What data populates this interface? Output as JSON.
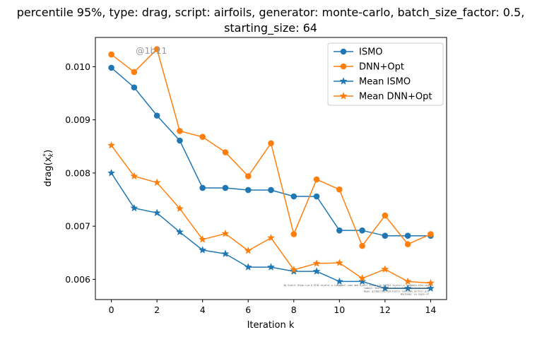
{
  "chart_data": {
    "type": "line",
    "title_line1": "percentile 95%, type: drag, script: airfoils, generator: monte-carlo, batch_size_factor: 0.5,",
    "title_line2": "starting_size: 64",
    "xlabel": "Iteration k",
    "ylabel": "drag(x*_k)",
    "xlim": [
      -0.7,
      14.7
    ],
    "ylim": [
      0.00562,
      0.01055
    ],
    "xticks": [
      0,
      2,
      4,
      6,
      8,
      10,
      12,
      14
    ],
    "yticks": [
      0.006,
      0.007,
      0.008,
      0.009,
      0.01
    ],
    "ytick_labels": [
      "0.006",
      "0.007",
      "0.008",
      "0.009",
      "0.010"
    ],
    "x": [
      0,
      1,
      2,
      3,
      4,
      5,
      6,
      7,
      8,
      9,
      10,
      11,
      12,
      13,
      14
    ],
    "legend_position": "top-right",
    "grid": false,
    "watermark": "@1b11",
    "footnote_lines": [
      "By Kjetil Olsen Lye @ ETHZ <kjetil.o.lye@gmail.com> and Kjetil Olsen Lye @ ETHZ <kjetil.o.lye@math.ethz.ch>",
      "Commit: 3e5f1f8eb9c3c7d5d4ea5b1bc7c4c2f2a8e4d1b0",
      "Repo: git@github.com:kjetil-lye/ismo_airfoil.git",
      "Hostname: eu-login-41"
    ],
    "series": [
      {
        "name": "ISMO",
        "color": "#1f77b4",
        "marker": "circle",
        "values": [
          0.00998,
          0.00961,
          0.00908,
          0.00861,
          0.00772,
          0.00772,
          0.00768,
          0.00768,
          0.00756,
          0.00756,
          0.00692,
          0.00692,
          0.00682,
          0.00682,
          0.00682
        ]
      },
      {
        "name": "DNN+Opt",
        "color": "#ff7f0e",
        "marker": "circle",
        "values": [
          0.01023,
          0.0099,
          0.01033,
          0.00879,
          0.00868,
          0.00839,
          0.00794,
          0.00856,
          0.00685,
          0.00788,
          0.00769,
          0.00663,
          0.0072,
          0.00666,
          0.00685
        ]
      },
      {
        "name": "Mean ISMO",
        "color": "#1f77b4",
        "marker": "star",
        "values": [
          0.008,
          0.00734,
          0.00725,
          0.00689,
          0.00655,
          0.00648,
          0.00623,
          0.00623,
          0.00615,
          0.00615,
          0.00596,
          0.00596,
          0.00583,
          0.00583,
          0.00583
        ]
      },
      {
        "name": "Mean DNN+Opt",
        "color": "#ff7f0e",
        "marker": "star",
        "values": [
          0.00852,
          0.00794,
          0.00782,
          0.00733,
          0.00675,
          0.00686,
          0.00654,
          0.00678,
          0.00618,
          0.0063,
          0.00631,
          0.00602,
          0.00619,
          0.00596,
          0.00593
        ]
      }
    ]
  }
}
